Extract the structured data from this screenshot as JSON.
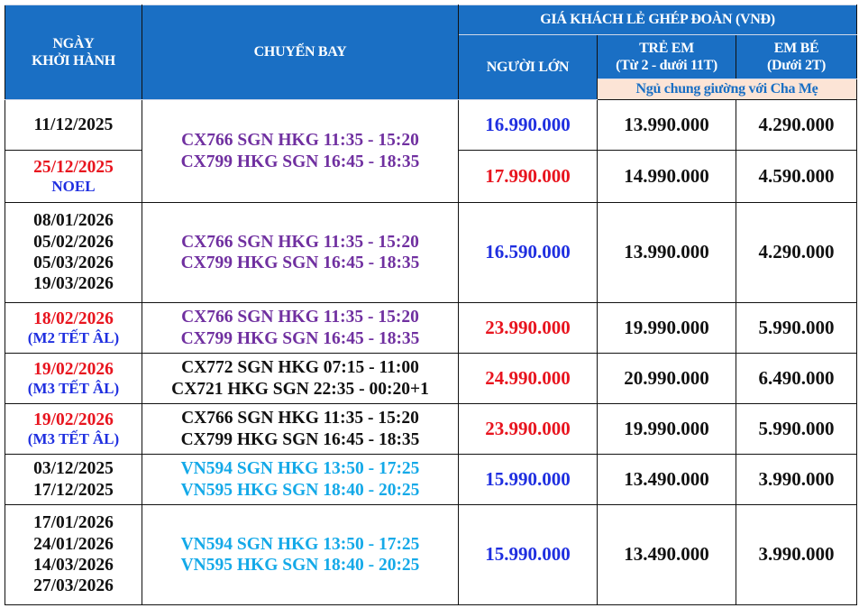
{
  "header": {
    "date_col": [
      "NGÀY",
      "KHỞI HÀNH"
    ],
    "flight_col": "CHUYẾN BAY",
    "price_group": "GIÁ KHÁCH LẺ GHÉP ĐOÀN (VNĐ)",
    "adult": "NGƯỜI LỚN",
    "child": [
      "TRẺ EM",
      "(Từ 2 - dưới 11T)"
    ],
    "infant": [
      "EM BÉ",
      "(Dưới 2T)"
    ],
    "note": "Ngủ chung giường với Cha Mẹ"
  },
  "colors": {
    "header_bg": "#1a6fc4",
    "note_bg": "#fce4d6",
    "blue": "#1f2fe0",
    "red": "#e8141e",
    "purple": "#7030a0",
    "cyan": "#14a9e8"
  },
  "rows": [
    {
      "dates": [
        {
          "text": "11/12/2025",
          "color": "black"
        }
      ],
      "flights": {
        "lines": [
          "CX766 SGN HKG 11:35 - 15:20",
          "CX799 HKG SGN 16:45 - 18:35"
        ],
        "color": "purple",
        "rowspan": 2
      },
      "adult": "16.990.000",
      "adult_color": "blue",
      "child": "13.990.000",
      "infant": "4.290.000"
    },
    {
      "dates": [
        {
          "text": "25/12/2025",
          "color": "red"
        },
        {
          "text": "NOEL",
          "color": "blue",
          "sub": true
        }
      ],
      "flights": null,
      "adult": "17.990.000",
      "adult_color": "red",
      "child": "14.990.000",
      "infant": "4.590.000"
    },
    {
      "dates": [
        {
          "text": "08/01/2026",
          "color": "black"
        },
        {
          "text": "05/02/2026",
          "color": "black"
        },
        {
          "text": "05/03/2026",
          "color": "black"
        },
        {
          "text": "19/03/2026",
          "color": "black"
        }
      ],
      "flights": {
        "lines": [
          "CX766 SGN HKG 11:35 - 15:20",
          "CX799 HKG SGN 16:45 - 18:35"
        ],
        "color": "purple",
        "rowspan": 1
      },
      "adult": "16.590.000",
      "adult_color": "blue",
      "child": "13.990.000",
      "infant": "4.290.000"
    },
    {
      "dates": [
        {
          "text": "18/02/2026",
          "color": "red"
        },
        {
          "text": "(M2 TẾT ÂL)",
          "color": "blue",
          "sub": true
        }
      ],
      "flights": {
        "lines": [
          "CX766 SGN HKG 11:35 - 15:20",
          "CX799 HKG SGN 16:45 - 18:35"
        ],
        "color": "purple",
        "rowspan": 1
      },
      "adult": "23.990.000",
      "adult_color": "red",
      "child": "19.990.000",
      "infant": "5.990.000"
    },
    {
      "dates": [
        {
          "text": "19/02/2026",
          "color": "red"
        },
        {
          "text": "(M3 TẾT ÂL)",
          "color": "blue",
          "sub": true
        }
      ],
      "flights": {
        "lines": [
          "CX772 SGN HKG 07:15 - 11:00",
          "CX721 HKG SGN 22:35 - 00:20+1"
        ],
        "color": "black",
        "rowspan": 1
      },
      "adult": "24.990.000",
      "adult_color": "red",
      "child": "20.990.000",
      "infant": "6.490.000"
    },
    {
      "dates": [
        {
          "text": "19/02/2026",
          "color": "red"
        },
        {
          "text": "(M3 TẾT ÂL)",
          "color": "blue",
          "sub": true
        }
      ],
      "flights": {
        "lines": [
          "CX766 SGN HKG 11:35 - 15:20",
          "CX799 HKG SGN 16:45 - 18:35"
        ],
        "color": "black",
        "rowspan": 1
      },
      "adult": "23.990.000",
      "adult_color": "red",
      "child": "19.990.000",
      "infant": "5.990.000"
    },
    {
      "dates": [
        {
          "text": "03/12/2025",
          "color": "black"
        },
        {
          "text": "17/12/2025",
          "color": "black"
        }
      ],
      "flights": {
        "lines": [
          "VN594 SGN HKG 13:50 - 17:25",
          "VN595 HKG SGN 18:40 - 20:25"
        ],
        "color": "cyan",
        "rowspan": 1
      },
      "adult": "15.990.000",
      "adult_color": "blue",
      "child": "13.490.000",
      "infant": "3.990.000"
    },
    {
      "dates": [
        {
          "text": "17/01/2026",
          "color": "black"
        },
        {
          "text": "24/01/2026",
          "color": "black"
        },
        {
          "text": "14/03/2026",
          "color": "black"
        },
        {
          "text": "27/03/2026",
          "color": "black"
        }
      ],
      "flights": {
        "lines": [
          "VN594 SGN HKG 13:50 - 17:25",
          "VN595 HKG SGN 18:40 - 20:25"
        ],
        "color": "cyan",
        "rowspan": 1
      },
      "adult": "15.990.000",
      "adult_color": "blue",
      "child": "13.490.000",
      "infant": "3.990.000"
    }
  ]
}
